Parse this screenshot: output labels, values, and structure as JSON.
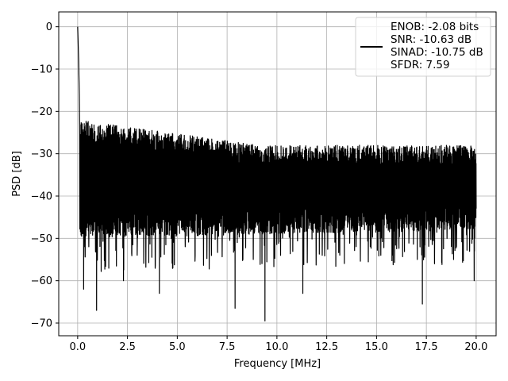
{
  "chart_data": {
    "type": "line",
    "title": "",
    "xlabel": "Frequency [MHz]",
    "ylabel": "PSD [dB]",
    "xlim": [
      -0.95,
      21.0
    ],
    "ylim": [
      -73,
      3.5
    ],
    "xticks": [
      0.0,
      2.5,
      5.0,
      7.5,
      10.0,
      12.5,
      15.0,
      17.5,
      20.0
    ],
    "xtick_labels": [
      "0.0",
      "2.5",
      "5.0",
      "7.5",
      "10.0",
      "12.5",
      "15.0",
      "17.5",
      "20.0"
    ],
    "yticks": [
      0,
      -10,
      -20,
      -30,
      -40,
      -50,
      -60,
      -70
    ],
    "ytick_labels": [
      "0",
      "−10",
      "−20",
      "−30",
      "−40",
      "−50",
      "−60",
      "−70"
    ],
    "grid": true,
    "legend_position": "top-right",
    "legend_lines": [
      "ENOB: -2.08 bits",
      "SNR: -10.63 dB",
      "SINAD: -10.75 dB",
      "SFDR: 7.59"
    ],
    "series": [
      {
        "color": "#000000",
        "x_range": [
          0.0,
          20.0
        ],
        "noise_floor_band": {
          "upper_db": [
            -22,
            -28
          ],
          "lower_db": [
            -44,
            -42
          ]
        },
        "dips": [
          {
            "x": 0.3,
            "y": -62
          },
          {
            "x": 0.95,
            "y": -67
          },
          {
            "x": 2.3,
            "y": -60
          },
          {
            "x": 4.1,
            "y": -63
          },
          {
            "x": 7.9,
            "y": -66.5
          },
          {
            "x": 9.4,
            "y": -69.5
          },
          {
            "x": 11.3,
            "y": -63
          },
          {
            "x": 17.3,
            "y": -65.5
          },
          {
            "x": 19.9,
            "y": -60
          }
        ],
        "peaks": [
          {
            "x": 0.0,
            "y": 0.0
          },
          {
            "x": 0.05,
            "y": -8
          }
        ]
      }
    ]
  }
}
